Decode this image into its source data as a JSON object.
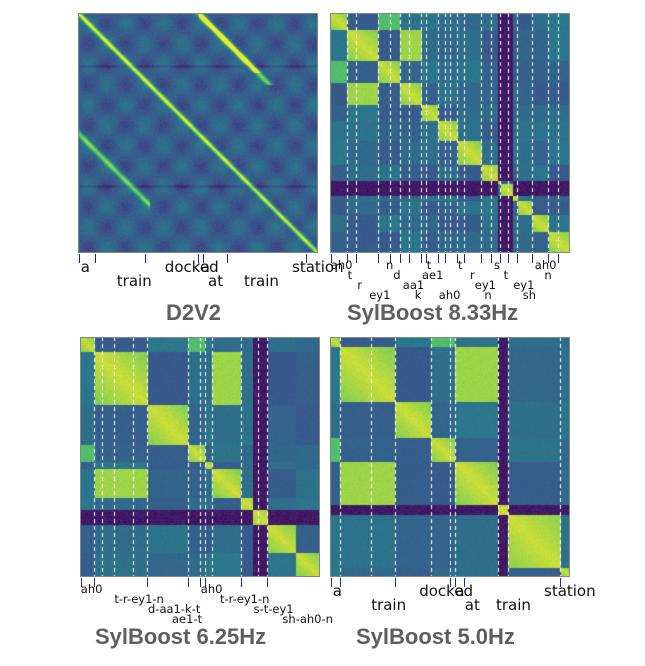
{
  "colors": {
    "viridis": [
      "#440154",
      "#3b528b",
      "#21918c",
      "#5ec962",
      "#fde725"
    ],
    "boundary_line": "#ffffff",
    "tick_color": "#1f2b8f",
    "title_color": "#5e5e5e"
  },
  "chart_data": [
    {
      "type": "heatmap",
      "title": "D2V2",
      "value_range": [
        0,
        1
      ],
      "colormap": "viridis",
      "segment_boundaries": [],
      "token_labels": [
        "a",
        "train",
        "docked",
        "a",
        "at",
        "train",
        "station"
      ],
      "token_label_rows": [
        0,
        1,
        0,
        0,
        1,
        1,
        0
      ],
      "token_positions": [
        0.02,
        0.17,
        0.37,
        0.52,
        0.55,
        0.7,
        0.9
      ],
      "token_tick_positions": [
        0.005,
        0.07,
        0.28,
        0.5,
        0.52,
        0.62,
        0.95
      ],
      "stripe_bands": [],
      "blocks": [],
      "line_layer": true
    },
    {
      "type": "heatmap",
      "title": "SylBoost 8.33Hz",
      "value_range": [
        0,
        1
      ],
      "colormap": "viridis",
      "segment_boundaries": [
        0.07,
        0.11,
        0.2,
        0.25,
        0.29,
        0.33,
        0.38,
        0.4,
        0.45,
        0.48,
        0.5,
        0.53,
        0.56,
        0.63,
        0.67,
        0.71,
        0.74,
        0.78,
        0.84,
        0.91,
        0.95
      ],
      "token_labels": [
        "ah0",
        "t",
        "r",
        "ey1",
        "n",
        "d",
        "aa1",
        "k",
        "ae1",
        "t",
        "ah0",
        "t",
        "r",
        "ey1",
        "n",
        "s",
        "t",
        "ey1",
        "sh",
        "ah0",
        "n"
      ],
      "token_label_rows": [
        0,
        1,
        2,
        3,
        0,
        1,
        2,
        3,
        1,
        0,
        3,
        0,
        1,
        2,
        3,
        0,
        1,
        2,
        3,
        0,
        1
      ],
      "token_positions": [
        0.02,
        0.09,
        0.13,
        0.18,
        0.25,
        0.28,
        0.32,
        0.37,
        0.4,
        0.42,
        0.47,
        0.55,
        0.6,
        0.62,
        0.66,
        0.7,
        0.74,
        0.78,
        0.82,
        0.87,
        0.91
      ],
      "token_tick_positions": [
        0.005,
        0.07,
        0.11,
        0.2,
        0.25,
        0.29,
        0.33,
        0.38,
        0.4,
        0.45,
        0.48,
        0.53,
        0.56,
        0.63,
        0.67,
        0.71,
        0.74,
        0.78,
        0.84,
        0.91,
        0.95
      ],
      "stripe_bands": [
        [
          0.7,
          0.76
        ]
      ],
      "blocks": [
        [
          0.0,
          0.07
        ],
        [
          0.07,
          0.2
        ],
        [
          0.2,
          0.29
        ],
        [
          0.29,
          0.38
        ],
        [
          0.38,
          0.45
        ],
        [
          0.45,
          0.53
        ],
        [
          0.53,
          0.63
        ],
        [
          0.63,
          0.71
        ],
        [
          0.71,
          0.78
        ],
        [
          0.78,
          0.84
        ],
        [
          0.84,
          0.91
        ],
        [
          0.91,
          1.0
        ]
      ],
      "line_layer": false
    },
    {
      "type": "heatmap",
      "title": "SylBoost 6.25Hz",
      "value_range": [
        0,
        1
      ],
      "colormap": "viridis",
      "segment_boundaries": [
        0.06,
        0.09,
        0.14,
        0.22,
        0.28,
        0.45,
        0.5,
        0.52,
        0.55,
        0.67,
        0.74,
        0.78
      ],
      "token_labels": [
        "ah0",
        "t-r-ey1-n",
        "d-aa1-k-t",
        "ae1-t",
        "ah0",
        "t-r-ey1-n",
        "s-t-ey1",
        "sh-ah0-n"
      ],
      "token_label_rows": [
        0,
        1,
        2,
        3,
        0,
        1,
        2,
        3
      ],
      "token_positions": [
        0.02,
        0.16,
        0.3,
        0.4,
        0.52,
        0.6,
        0.74,
        0.86
      ],
      "token_tick_positions": [
        0.005,
        0.06,
        0.28,
        0.45,
        0.5,
        0.52,
        0.67,
        0.78
      ],
      "stripe_bands": [
        [
          0.72,
          0.78
        ]
      ],
      "blocks": [
        [
          0.0,
          0.06
        ],
        [
          0.06,
          0.28
        ],
        [
          0.28,
          0.45
        ],
        [
          0.45,
          0.52
        ],
        [
          0.52,
          0.55
        ],
        [
          0.55,
          0.67
        ],
        [
          0.67,
          0.78
        ],
        [
          0.78,
          0.9
        ],
        [
          0.9,
          1.0
        ]
      ],
      "line_layer": false
    },
    {
      "type": "heatmap",
      "title": "SylBoost 5.0Hz",
      "value_range": [
        0,
        1
      ],
      "colormap": "viridis",
      "segment_boundaries": [
        0.04,
        0.17,
        0.27,
        0.42,
        0.5,
        0.52,
        0.7,
        0.74,
        0.96
      ],
      "token_labels": [
        "a",
        "train",
        "docked",
        "a",
        "at",
        "train",
        "station"
      ],
      "token_label_rows": [
        0,
        1,
        0,
        0,
        1,
        1,
        0
      ],
      "token_positions": [
        0.02,
        0.18,
        0.38,
        0.53,
        0.57,
        0.7,
        0.9
      ],
      "token_tick_positions": [
        0.005,
        0.04,
        0.27,
        0.5,
        0.52,
        0.56,
        0.96
      ],
      "stripe_bands": [
        [
          0.7,
          0.74
        ]
      ],
      "blocks": [
        [
          0.0,
          0.04
        ],
        [
          0.04,
          0.27
        ],
        [
          0.27,
          0.42
        ],
        [
          0.42,
          0.52
        ],
        [
          0.52,
          0.7
        ],
        [
          0.7,
          0.96
        ],
        [
          0.96,
          1.0
        ]
      ],
      "line_layer": false
    }
  ]
}
